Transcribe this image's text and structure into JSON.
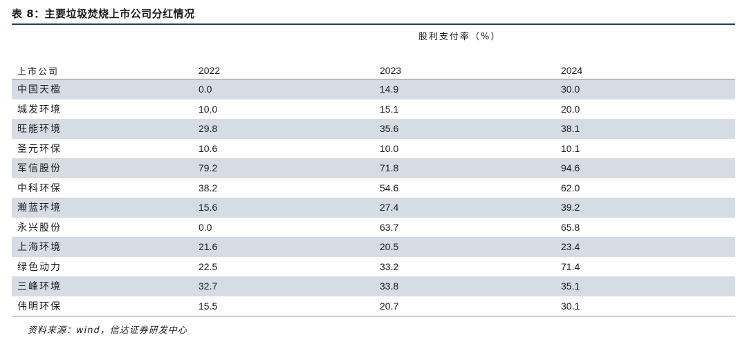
{
  "title": "表 8：主要垃圾焚烧上市公司分红情况",
  "super_header": "股利支付率（%）",
  "columns": [
    "上市公司",
    "2022",
    "2023",
    "2024"
  ],
  "rows": [
    {
      "name": "中国天楹",
      "v2022": "0.0",
      "v2023": "14.9",
      "v2024": "30.0"
    },
    {
      "name": "城发环境",
      "v2022": "10.0",
      "v2023": "15.1",
      "v2024": "20.0"
    },
    {
      "name": "旺能环境",
      "v2022": "29.8",
      "v2023": "35.6",
      "v2024": "38.1"
    },
    {
      "name": "圣元环保",
      "v2022": "10.6",
      "v2023": "10.0",
      "v2024": "10.1"
    },
    {
      "name": "军信股份",
      "v2022": "79.2",
      "v2023": "71.8",
      "v2024": "94.6"
    },
    {
      "name": "中科环保",
      "v2022": "38.2",
      "v2023": "54.6",
      "v2024": "62.0"
    },
    {
      "name": "瀚蓝环境",
      "v2022": "15.6",
      "v2023": "27.4",
      "v2024": "39.2"
    },
    {
      "name": "永兴股份",
      "v2022": "0.0",
      "v2023": "63.7",
      "v2024": "65.8"
    },
    {
      "name": "上海环境",
      "v2022": "21.6",
      "v2023": "20.5",
      "v2024": "23.4"
    },
    {
      "name": "绿色动力",
      "v2022": "22.5",
      "v2023": "33.2",
      "v2024": "71.4"
    },
    {
      "name": "三峰环境",
      "v2022": "32.7",
      "v2023": "33.8",
      "v2024": "35.1"
    },
    {
      "name": "伟明环保",
      "v2022": "15.5",
      "v2023": "20.7",
      "v2024": "30.1"
    }
  ],
  "source": "资料来源：wind，信达证券研发中心",
  "colors": {
    "shade": "#d6dce4",
    "rule": "#1f3864"
  }
}
